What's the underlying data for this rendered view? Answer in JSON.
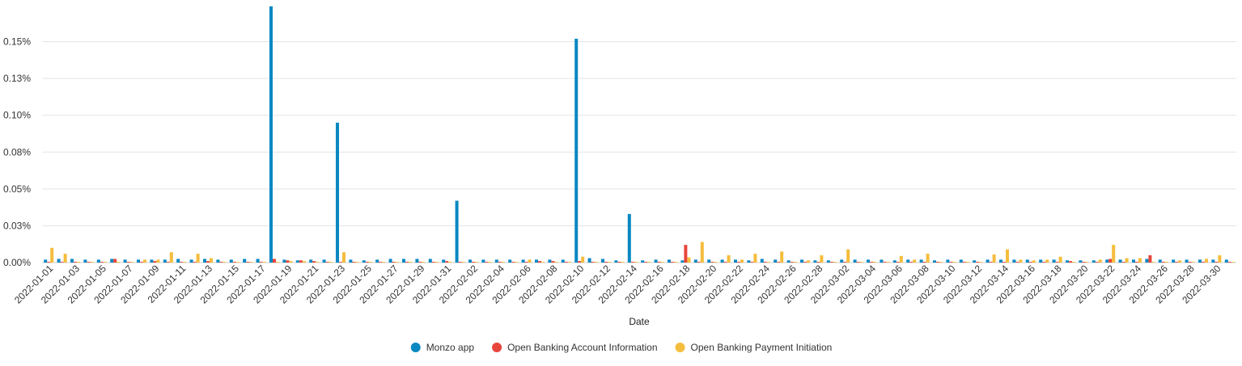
{
  "chart_data": {
    "type": "bar",
    "xlabel": "Date",
    "ylabel": "",
    "ylim": [
      0,
      0.00175
    ],
    "y_ticks": [
      0,
      0.00025,
      0.0005,
      0.00075,
      0.001,
      0.00125,
      0.0015
    ],
    "y_tick_labels": [
      "0.00%",
      "0.03%",
      "0.05%",
      "0.08%",
      "0.10%",
      "0.13%",
      "0.15%"
    ],
    "grid": true,
    "legend_position": "bottom",
    "x_tick_labels": [
      "2022-01-01",
      "2022-01-03",
      "2022-01-05",
      "2022-01-07",
      "2022-01-09",
      "2022-01-11",
      "2022-01-13",
      "2022-01-15",
      "2022-01-17",
      "2022-01-19",
      "2022-01-21",
      "2022-01-23",
      "2022-01-25",
      "2022-01-27",
      "2022-01-29",
      "2022-01-31",
      "2022-02-02",
      "2022-02-04",
      "2022-02-06",
      "2022-02-08",
      "2022-02-10",
      "2022-02-12",
      "2022-02-14",
      "2022-02-16",
      "2022-02-18",
      "2022-02-20",
      "2022-02-22",
      "2022-02-24",
      "2022-02-26",
      "2022-02-28",
      "2022-03-02",
      "2022-03-04",
      "2022-03-06",
      "2022-03-08",
      "2022-03-10",
      "2022-03-12",
      "2022-03-14",
      "2022-03-16",
      "2022-03-18",
      "2022-03-20",
      "2022-03-22",
      "2022-03-24",
      "2022-03-26",
      "2022-03-28",
      "2022-03-30"
    ],
    "categories": [
      "2022-01-01",
      "2022-01-02",
      "2022-01-03",
      "2022-01-04",
      "2022-01-05",
      "2022-01-06",
      "2022-01-07",
      "2022-01-08",
      "2022-01-09",
      "2022-01-10",
      "2022-01-11",
      "2022-01-12",
      "2022-01-13",
      "2022-01-14",
      "2022-01-15",
      "2022-01-16",
      "2022-01-17",
      "2022-01-18",
      "2022-01-19",
      "2022-01-20",
      "2022-01-21",
      "2022-01-22",
      "2022-01-23",
      "2022-01-24",
      "2022-01-25",
      "2022-01-26",
      "2022-01-27",
      "2022-01-28",
      "2022-01-29",
      "2022-01-30",
      "2022-01-31",
      "2022-02-01",
      "2022-02-02",
      "2022-02-03",
      "2022-02-04",
      "2022-02-05",
      "2022-02-06",
      "2022-02-07",
      "2022-02-08",
      "2022-02-09",
      "2022-02-10",
      "2022-02-11",
      "2022-02-12",
      "2022-02-13",
      "2022-02-14",
      "2022-02-15",
      "2022-02-16",
      "2022-02-17",
      "2022-02-18",
      "2022-02-19",
      "2022-02-20",
      "2022-02-21",
      "2022-02-22",
      "2022-02-23",
      "2022-02-24",
      "2022-02-25",
      "2022-02-26",
      "2022-02-27",
      "2022-02-28",
      "2022-03-01",
      "2022-03-02",
      "2022-03-03",
      "2022-03-04",
      "2022-03-05",
      "2022-03-06",
      "2022-03-07",
      "2022-03-08",
      "2022-03-09",
      "2022-03-10",
      "2022-03-11",
      "2022-03-12",
      "2022-03-13",
      "2022-03-14",
      "2022-03-15",
      "2022-03-16",
      "2022-03-17",
      "2022-03-18",
      "2022-03-19",
      "2022-03-20",
      "2022-03-21",
      "2022-03-22",
      "2022-03-23",
      "2022-03-24",
      "2022-03-25",
      "2022-03-26",
      "2022-03-27",
      "2022-03-28",
      "2022-03-29",
      "2022-03-30",
      "2022-03-31"
    ],
    "series": [
      {
        "name": "Monzo app",
        "color": "#0a88c2",
        "values": [
          2e-05,
          2.5e-05,
          2.5e-05,
          2e-05,
          2e-05,
          2.5e-05,
          2e-05,
          2e-05,
          2e-05,
          2e-05,
          2.5e-05,
          2e-05,
          2.5e-05,
          2e-05,
          2e-05,
          2.5e-05,
          2.5e-05,
          0.00174,
          2e-05,
          1.5e-05,
          2e-05,
          2e-05,
          0.00095,
          2e-05,
          1.5e-05,
          2e-05,
          2.5e-05,
          2.5e-05,
          2.5e-05,
          2.5e-05,
          2e-05,
          0.00042,
          2e-05,
          2e-05,
          2e-05,
          2e-05,
          2e-05,
          2e-05,
          2e-05,
          2e-05,
          0.00152,
          3e-05,
          2.5e-05,
          1.5e-05,
          0.00033,
          1.5e-05,
          2e-05,
          2e-05,
          1.5e-05,
          2e-05,
          2e-05,
          2e-05,
          2e-05,
          1.5e-05,
          2.5e-05,
          2e-05,
          1.5e-05,
          2e-05,
          1.5e-05,
          1.5e-05,
          2e-05,
          2e-05,
          2e-05,
          2e-05,
          1.5e-05,
          2e-05,
          2e-05,
          1.5e-05,
          2e-05,
          2e-05,
          1.5e-05,
          2e-05,
          2e-05,
          2e-05,
          2e-05,
          2e-05,
          2e-05,
          1.5e-05,
          1.5e-05,
          1.5e-05,
          2e-05,
          2e-05,
          2e-05,
          2.5e-05,
          2e-05,
          2e-05,
          2e-05,
          2e-05,
          2e-05,
          2e-05
        ]
      },
      {
        "name": "Open Banking Account Information",
        "color": "#e8453c",
        "values": [
          5e-06,
          5e-06,
          5e-06,
          5e-06,
          5e-06,
          2.5e-05,
          5e-06,
          5e-06,
          1e-05,
          5e-06,
          5e-06,
          5e-06,
          1e-05,
          5e-06,
          5e-06,
          5e-06,
          5e-06,
          2.5e-05,
          1.5e-05,
          1.5e-05,
          1e-05,
          5e-06,
          5e-06,
          5e-06,
          5e-06,
          5e-06,
          5e-06,
          5e-06,
          5e-06,
          5e-06,
          1e-05,
          5e-06,
          5e-06,
          5e-06,
          5e-06,
          5e-06,
          5e-06,
          1e-05,
          1e-05,
          5e-06,
          1e-05,
          5e-06,
          5e-06,
          5e-06,
          5e-06,
          5e-06,
          5e-06,
          5e-06,
          0.00012,
          5e-06,
          5e-06,
          5e-06,
          5e-06,
          5e-06,
          5e-06,
          5e-06,
          5e-06,
          5e-06,
          5e-06,
          5e-06,
          5e-06,
          5e-06,
          5e-06,
          5e-06,
          5e-06,
          5e-06,
          5e-06,
          5e-06,
          5e-06,
          5e-06,
          5e-06,
          5e-06,
          5e-06,
          5e-06,
          5e-06,
          5e-06,
          5e-06,
          1e-05,
          5e-06,
          5e-06,
          2.5e-05,
          5e-06,
          5e-06,
          5e-05,
          5e-06,
          5e-06,
          5e-06,
          5e-06,
          5e-06,
          5e-06
        ]
      },
      {
        "name": "Open Banking Payment Initiation",
        "color": "#f5bd3d",
        "values": [
          0.0001,
          6e-05,
          5e-06,
          5e-06,
          5e-06,
          5e-06,
          5e-06,
          2e-05,
          2e-05,
          7e-05,
          5e-06,
          6e-05,
          3e-05,
          5e-06,
          5e-06,
          5e-06,
          5e-06,
          5e-06,
          1e-05,
          1e-05,
          5e-06,
          5e-06,
          7e-05,
          5e-06,
          5e-06,
          5e-06,
          5e-06,
          5e-06,
          5e-06,
          5e-06,
          5e-06,
          5e-06,
          5e-06,
          5e-06,
          5e-06,
          5e-06,
          2e-05,
          5e-06,
          5e-06,
          5e-06,
          4e-05,
          5e-06,
          5e-06,
          5e-06,
          5e-06,
          5e-06,
          5e-06,
          5e-06,
          3.5e-05,
          0.00014,
          5e-06,
          5e-05,
          2e-05,
          6e-05,
          5e-06,
          7.5e-05,
          5e-06,
          1.5e-05,
          5e-05,
          5e-06,
          9e-05,
          5e-06,
          5e-06,
          5e-06,
          4.5e-05,
          2e-05,
          6e-05,
          5e-06,
          5e-06,
          5e-06,
          5e-06,
          5.5e-05,
          9e-05,
          2e-05,
          1.5e-05,
          2e-05,
          4e-05,
          5e-06,
          5e-06,
          2e-05,
          0.00012,
          3e-05,
          3e-05,
          5e-06,
          5e-06,
          1.5e-05,
          5e-06,
          2.5e-05,
          5e-05,
          5e-06
        ]
      }
    ]
  }
}
